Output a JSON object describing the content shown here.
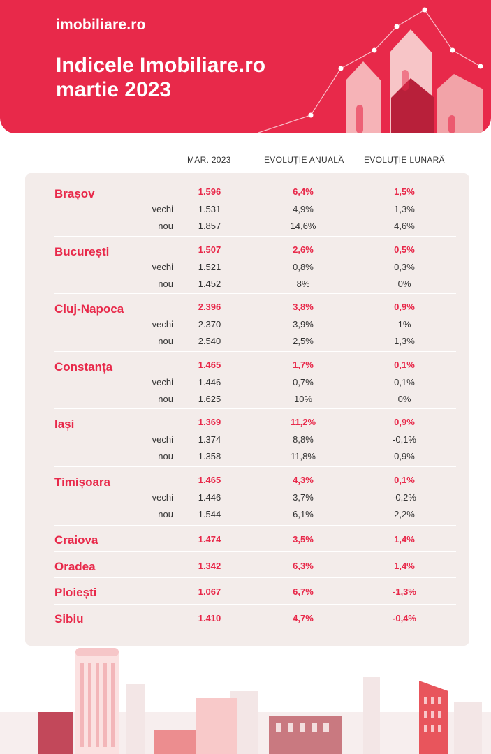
{
  "header": {
    "logo": "imobiliare.ro",
    "title_line1": "Indicele Imobiliare.ro",
    "title_line2": "martie 2023"
  },
  "columns": {
    "price": "MAR. 2023",
    "annual": "EVOLUȚIE ANUALĂ",
    "monthly": "EVOLUȚIE LUNARĂ"
  },
  "sub_labels": {
    "old": "vechi",
    "new": "nou"
  },
  "cities": [
    {
      "name": "Brașov",
      "main": [
        "1.596",
        "6,4%",
        "1,5%"
      ],
      "old": [
        "1.531",
        "4,9%",
        "1,3%"
      ],
      "new": [
        "1.857",
        "14,6%",
        "4,6%"
      ]
    },
    {
      "name": "București",
      "main": [
        "1.507",
        "2,6%",
        "0,5%"
      ],
      "old": [
        "1.521",
        "0,8%",
        "0,3%"
      ],
      "new": [
        "1.452",
        "8%",
        "0%"
      ]
    },
    {
      "name": "Cluj-Napoca",
      "main": [
        "2.396",
        "3,8%",
        "0,9%"
      ],
      "old": [
        "2.370",
        "3,9%",
        "1%"
      ],
      "new": [
        "2.540",
        "2,5%",
        "1,3%"
      ]
    },
    {
      "name": "Constanța",
      "main": [
        "1.465",
        "1,7%",
        "0,1%"
      ],
      "old": [
        "1.446",
        "0,7%",
        "0,1%"
      ],
      "new": [
        "1.625",
        "10%",
        "0%"
      ]
    },
    {
      "name": "Iași",
      "main": [
        "1.369",
        "11,2%",
        "0,9%"
      ],
      "old": [
        "1.374",
        "8,8%",
        "-0,1%"
      ],
      "new": [
        "1.358",
        "11,8%",
        "0,9%"
      ]
    },
    {
      "name": "Timișoara",
      "main": [
        "1.465",
        "4,3%",
        "0,1%"
      ],
      "old": [
        "1.446",
        "3,7%",
        "-0,2%"
      ],
      "new": [
        "1.544",
        "6,1%",
        "2,2%"
      ]
    },
    {
      "name": "Craiova",
      "main": [
        "1.474",
        "3,5%",
        "1,4%"
      ]
    },
    {
      "name": "Oradea",
      "main": [
        "1.342",
        "6,3%",
        "1,4%"
      ]
    },
    {
      "name": "Ploiești",
      "main": [
        "1.067",
        "6,7%",
        "-1,3%"
      ]
    },
    {
      "name": "Sibiu",
      "main": [
        "1.410",
        "4,7%",
        "-0,4%"
      ]
    }
  ]
}
